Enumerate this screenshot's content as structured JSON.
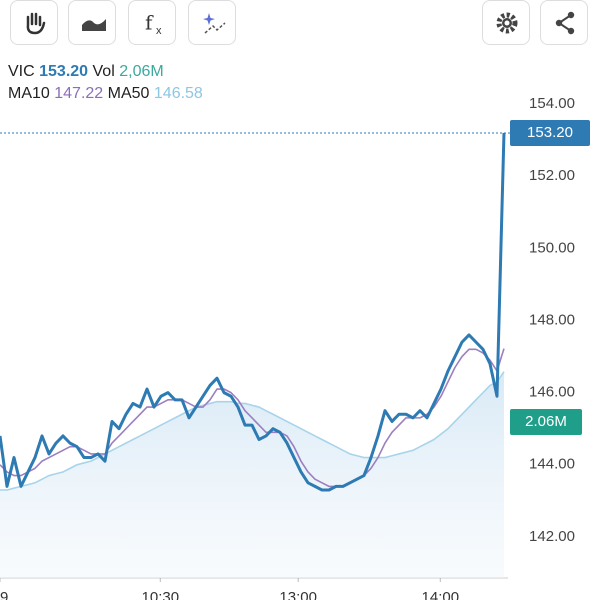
{
  "chart_data": {
    "type": "line",
    "series": [
      {
        "name": "VIC",
        "color": "#2e7ab3",
        "legend_value": "153.20",
        "values": [
          144.8,
          143.4,
          144.2,
          143.4,
          143.8,
          144.2,
          144.8,
          144.3,
          144.6,
          144.8,
          144.6,
          144.5,
          144.2,
          144.2,
          144.3,
          144.1,
          145.2,
          145.0,
          145.4,
          145.7,
          145.6,
          146.1,
          145.6,
          145.9,
          146.0,
          145.8,
          145.8,
          145.3,
          145.6,
          145.9,
          146.2,
          146.4,
          146.0,
          145.9,
          145.6,
          145.1,
          145.1,
          144.7,
          144.8,
          145.0,
          144.9,
          144.6,
          144.2,
          143.8,
          143.5,
          143.4,
          143.3,
          143.3,
          143.4,
          143.4,
          143.5,
          143.6,
          143.7,
          144.2,
          144.8,
          145.5,
          145.2,
          145.4,
          145.4,
          145.3,
          145.5,
          145.3,
          145.7,
          146.1,
          146.6,
          147.0,
          147.4,
          147.6,
          147.4,
          147.2,
          146.8,
          145.9,
          153.2
        ]
      },
      {
        "name": "MA10",
        "color": "#9b7fc0",
        "legend_value": "147.22",
        "values": [
          144.0,
          143.8,
          143.7,
          143.7,
          143.8,
          143.9,
          144.1,
          144.2,
          144.3,
          144.4,
          144.5,
          144.5,
          144.4,
          144.3,
          144.3,
          144.3,
          144.6,
          144.8,
          145.0,
          145.2,
          145.4,
          145.6,
          145.6,
          145.7,
          145.8,
          145.8,
          145.8,
          145.7,
          145.6,
          145.6,
          145.8,
          146.1,
          146.1,
          146.0,
          145.8,
          145.5,
          145.3,
          145.1,
          144.9,
          144.9,
          144.9,
          144.8,
          144.5,
          144.1,
          143.8,
          143.6,
          143.5,
          143.4,
          143.4,
          143.4,
          143.5,
          143.6,
          143.7,
          143.9,
          144.2,
          144.6,
          144.9,
          145.1,
          145.3,
          145.3,
          145.3,
          145.4,
          145.6,
          145.9,
          146.3,
          146.7,
          147.0,
          147.2,
          147.2,
          147.1,
          146.9,
          146.6,
          147.22
        ]
      },
      {
        "name": "MA50",
        "color": "#a8d4ea",
        "legend_value": "146.58",
        "values": [
          143.3,
          143.3,
          143.35,
          143.4,
          143.45,
          143.5,
          143.6,
          143.7,
          143.75,
          143.8,
          143.9,
          144.0,
          144.05,
          144.1,
          144.2,
          144.3,
          144.4,
          144.5,
          144.6,
          144.7,
          144.8,
          144.9,
          145.0,
          145.1,
          145.2,
          145.3,
          145.4,
          145.5,
          145.6,
          145.65,
          145.7,
          145.75,
          145.75,
          145.75,
          145.7,
          145.7,
          145.65,
          145.6,
          145.5,
          145.4,
          145.3,
          145.2,
          145.1,
          145.0,
          144.9,
          144.8,
          144.7,
          144.6,
          144.5,
          144.4,
          144.3,
          144.25,
          144.2,
          144.2,
          144.2,
          144.2,
          144.25,
          144.3,
          144.35,
          144.4,
          144.5,
          144.6,
          144.7,
          144.85,
          145.0,
          145.2,
          145.4,
          145.6,
          145.8,
          146.0,
          146.2,
          146.3,
          146.58
        ]
      }
    ],
    "volume_text": "Vol",
    "volume_legend": "2,06M",
    "last_price_label": "153.20",
    "volume_label": "2.06M",
    "xlim": [
      0,
      72.43
    ],
    "xticks": [
      {
        "value": 0,
        "label": "9"
      },
      {
        "value": 22.9,
        "label": "10:30"
      },
      {
        "value": 42.6,
        "label": "13:00"
      },
      {
        "value": 62.9,
        "label": "14:00"
      }
    ],
    "ylim": [
      140.86,
      155.5
    ],
    "yticks": [
      {
        "value": 142,
        "label": "142.00"
      },
      {
        "value": 144,
        "label": "144.00"
      },
      {
        "value": 146,
        "label": "146.00"
      },
      {
        "value": 148,
        "label": "148.00"
      },
      {
        "value": 150,
        "label": "150.00"
      },
      {
        "value": 152,
        "label": "152.00"
      },
      {
        "value": 154,
        "label": "154.00"
      }
    ]
  }
}
